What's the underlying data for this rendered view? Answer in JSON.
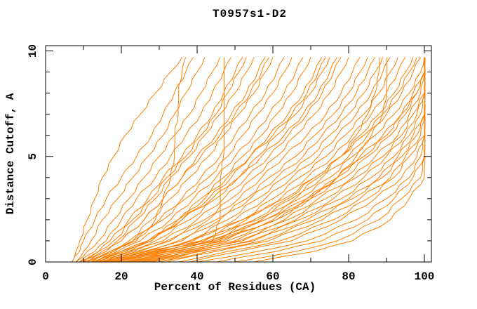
{
  "figure": {
    "background": "#ffffff"
  },
  "chart_data": {
    "type": "line",
    "title": "T0957s1-D2",
    "xlabel": "Percent of Residues (CA)",
    "ylabel": "Distance Cutoff, A",
    "xlim": [
      0,
      101.8
    ],
    "ylim": [
      0,
      10.25
    ],
    "x_major_ticks": [
      0,
      20,
      40,
      60,
      80,
      100
    ],
    "x_minor_step": 10,
    "y_major_ticks": [
      0,
      5,
      10
    ],
    "y_minor_step": 1,
    "grid": false,
    "legend": "none",
    "tick_style": "inward-mirrored-box",
    "y_tick_labels_rotated": true,
    "line_color": "#ff7f00",
    "axis_color": "#000000",
    "series_format": "percent_of_residues_at_each_cutoff",
    "cutoffs": [
      0,
      0.5,
      1,
      2,
      3,
      4,
      5,
      6,
      7,
      8,
      9,
      9.7
    ],
    "series": [
      [
        7,
        8,
        9,
        11,
        13,
        15,
        18,
        21,
        25,
        29,
        33,
        36
      ],
      [
        7,
        9,
        10,
        13,
        16,
        20,
        24,
        28,
        31,
        34,
        37,
        39
      ],
      [
        8,
        10,
        12,
        15,
        19,
        23,
        27,
        31,
        34,
        37,
        40,
        42
      ],
      [
        12,
        18,
        24,
        29,
        31,
        33,
        34,
        34,
        35,
        35,
        36,
        37
      ],
      [
        8,
        11,
        14,
        18,
        22,
        26,
        30,
        34,
        38,
        41,
        44,
        46
      ],
      [
        9,
        13,
        16,
        20,
        24,
        29,
        33,
        37,
        41,
        44,
        47,
        49
      ],
      [
        30,
        40,
        44,
        46,
        46,
        46,
        47,
        47,
        47,
        47,
        47,
        47
      ],
      [
        10,
        14,
        17,
        22,
        27,
        31,
        36,
        40,
        44,
        47,
        50,
        52
      ],
      [
        9,
        15,
        19,
        24,
        29,
        33,
        38,
        42,
        46,
        50,
        53,
        55
      ],
      [
        11,
        16,
        20,
        26,
        31,
        36,
        40,
        45,
        49,
        53,
        56,
        58
      ],
      [
        10,
        17,
        22,
        28,
        33,
        38,
        43,
        47,
        51,
        55,
        58,
        60
      ],
      [
        12,
        18,
        23,
        30,
        36,
        41,
        46,
        50,
        54,
        58,
        61,
        63
      ],
      [
        11,
        17,
        23,
        31,
        37,
        43,
        48,
        52,
        56,
        60,
        63,
        65
      ],
      [
        13,
        19,
        25,
        33,
        39,
        45,
        50,
        55,
        59,
        63,
        66,
        68
      ],
      [
        12,
        20,
        27,
        35,
        41,
        47,
        52,
        57,
        61,
        65,
        68,
        70
      ],
      [
        14,
        21,
        28,
        36,
        43,
        49,
        54,
        59,
        64,
        68,
        71,
        73
      ],
      [
        13,
        22,
        29,
        38,
        45,
        51,
        56,
        61,
        66,
        70,
        73,
        75
      ],
      [
        15,
        23,
        31,
        40,
        47,
        53,
        59,
        64,
        69,
        73,
        76,
        78
      ],
      [
        14,
        24,
        32,
        42,
        49,
        55,
        61,
        66,
        71,
        75,
        78,
        80
      ],
      [
        16,
        25,
        33,
        43,
        51,
        57,
        63,
        69,
        74,
        78,
        81,
        83
      ],
      [
        15,
        26,
        35,
        45,
        53,
        59,
        66,
        71,
        76,
        80,
        83,
        85
      ],
      [
        17,
        27,
        36,
        46,
        54,
        61,
        68,
        73,
        78,
        82,
        85,
        87
      ],
      [
        16,
        28,
        38,
        48,
        56,
        63,
        70,
        75,
        80,
        84,
        87,
        89
      ],
      [
        18,
        29,
        39,
        50,
        58,
        65,
        72,
        77,
        82,
        86,
        89,
        91
      ],
      [
        17,
        30,
        41,
        52,
        60,
        67,
        74,
        79,
        84,
        88,
        91,
        93
      ],
      [
        19,
        31,
        42,
        53,
        62,
        69,
        76,
        81,
        86,
        90,
        93,
        95
      ],
      [
        18,
        32,
        44,
        55,
        64,
        71,
        78,
        83,
        88,
        92,
        95,
        97
      ],
      [
        20,
        33,
        45,
        57,
        66,
        73,
        80,
        85,
        90,
        94,
        97,
        99
      ],
      [
        22,
        34,
        46,
        58,
        67,
        75,
        81,
        87,
        92,
        96,
        99,
        100
      ],
      [
        21,
        35,
        47,
        60,
        69,
        77,
        83,
        89,
        94,
        97,
        100,
        100
      ],
      [
        24,
        36,
        48,
        61,
        70,
        79,
        85,
        91,
        95,
        98,
        100,
        100
      ],
      [
        23,
        37,
        50,
        63,
        72,
        81,
        87,
        93,
        96,
        99,
        100,
        100
      ],
      [
        26,
        38,
        51,
        64,
        74,
        82,
        89,
        94,
        97,
        100,
        100,
        100
      ],
      [
        25,
        39,
        52,
        66,
        76,
        84,
        90,
        95,
        98,
        100,
        100,
        100
      ],
      [
        28,
        40,
        54,
        67,
        78,
        86,
        92,
        96,
        99,
        100,
        100,
        100
      ],
      [
        27,
        41,
        55,
        69,
        80,
        88,
        93,
        97,
        100,
        100,
        100,
        100
      ],
      [
        30,
        43,
        57,
        71,
        81,
        89,
        94,
        98,
        100,
        100,
        100,
        100
      ],
      [
        32,
        45,
        59,
        73,
        83,
        91,
        95,
        99,
        100,
        100,
        100,
        100
      ],
      [
        35,
        48,
        62,
        76,
        85,
        92,
        96,
        100,
        100,
        100,
        100,
        100
      ],
      [
        38,
        51,
        65,
        78,
        87,
        94,
        98,
        100,
        100,
        100,
        100,
        100
      ],
      [
        40,
        56,
        69,
        82,
        90,
        96,
        99,
        100,
        100,
        100,
        100,
        100
      ],
      [
        45,
        61,
        73,
        85,
        92,
        97,
        100,
        100,
        100,
        100,
        100,
        100
      ],
      [
        50,
        66,
        77,
        88,
        94,
        99,
        100,
        100,
        100,
        100,
        100,
        100
      ],
      [
        55,
        71,
        81,
        91,
        96,
        100,
        100,
        100,
        100,
        100,
        100,
        100
      ],
      [
        15,
        26,
        41,
        56,
        65,
        72,
        78,
        82,
        85,
        87,
        88,
        88
      ],
      [
        18,
        29,
        45,
        61,
        70,
        77,
        82,
        86,
        89,
        90,
        90,
        90
      ],
      [
        9,
        14,
        18,
        23,
        28,
        32,
        37,
        41,
        45,
        48,
        51,
        53
      ],
      [
        13,
        20,
        27,
        36,
        44,
        51,
        57,
        63,
        68,
        72,
        75,
        77
      ],
      [
        19,
        28,
        38,
        52,
        63,
        71,
        78,
        84,
        89,
        93,
        96,
        98
      ],
      [
        16,
        22,
        28,
        35,
        42,
        48,
        54,
        60,
        65,
        69,
        72,
        74
      ],
      [
        22,
        32,
        43,
        58,
        69,
        77,
        84,
        90,
        94,
        98,
        100,
        100
      ],
      [
        11,
        16,
        20,
        26,
        31,
        36,
        41,
        46,
        50,
        54,
        57,
        59
      ]
    ]
  }
}
